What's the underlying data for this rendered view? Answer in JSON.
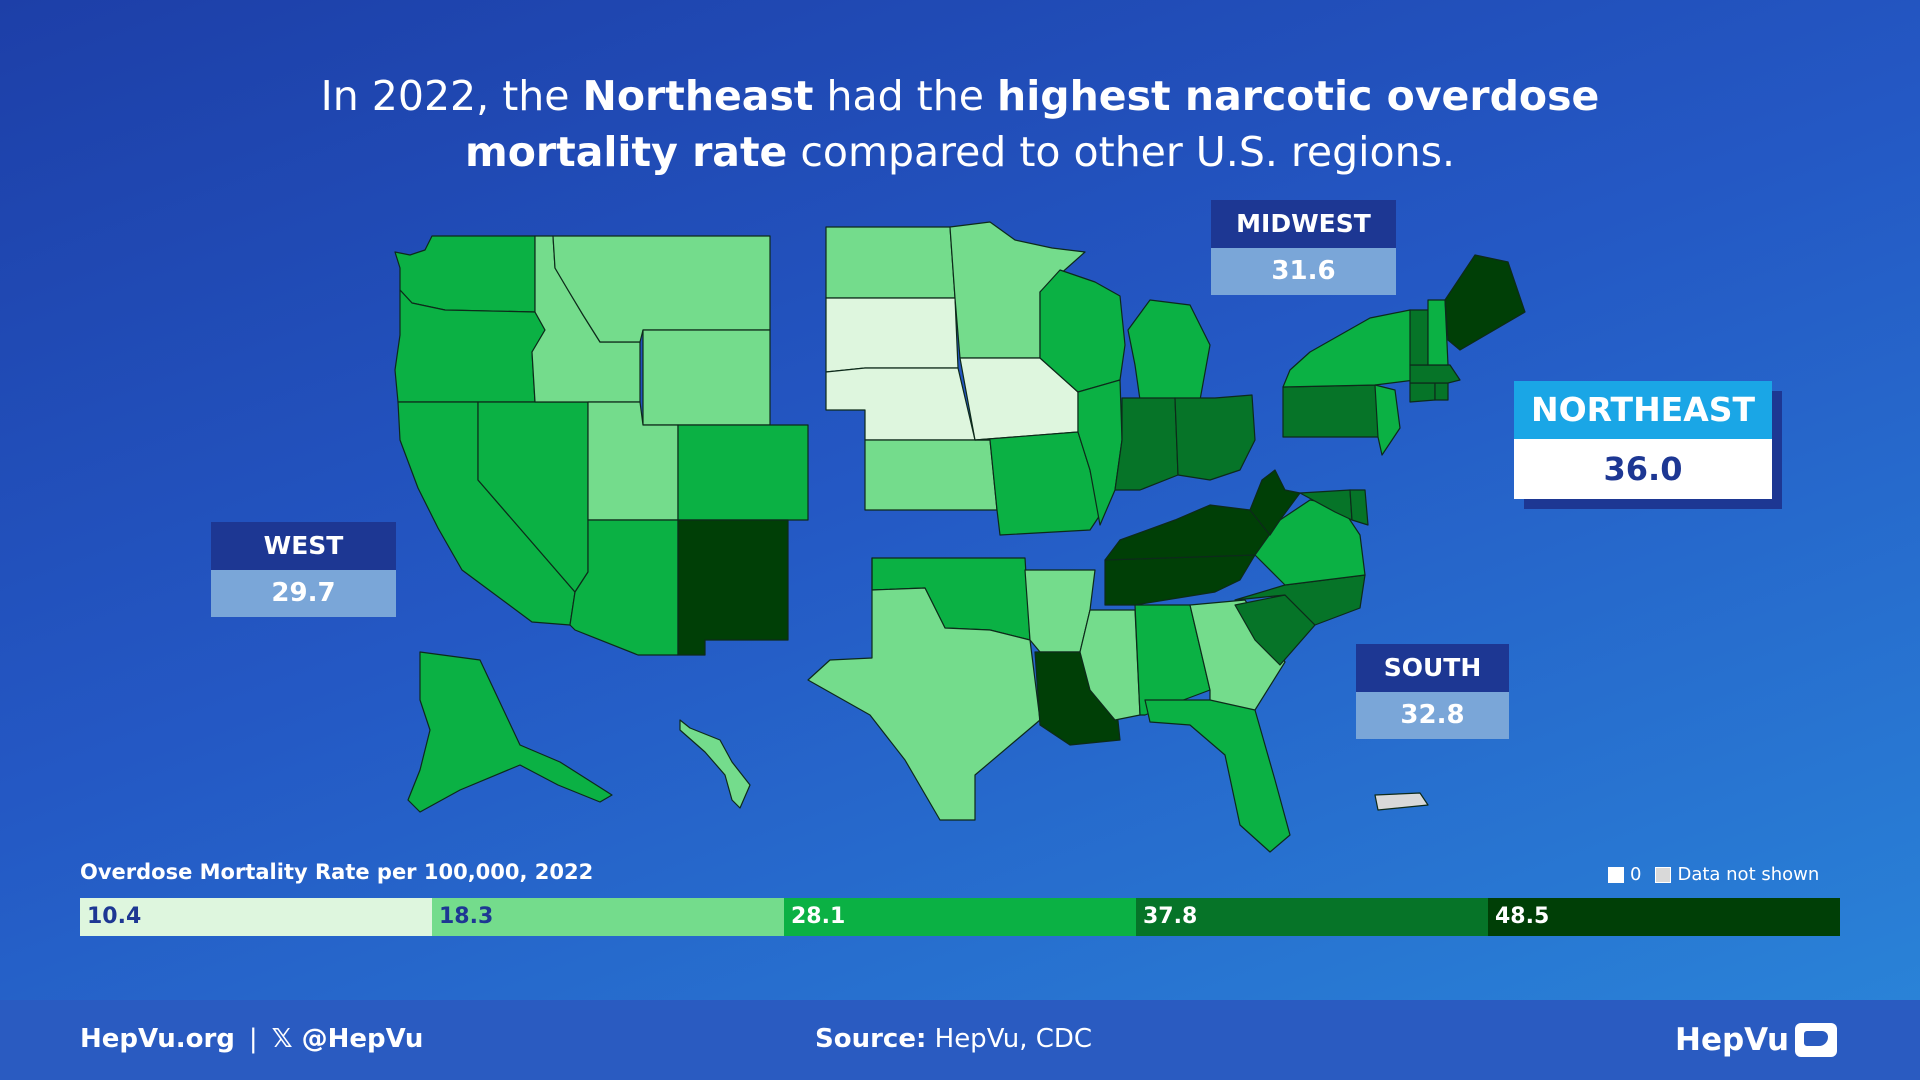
{
  "headline": {
    "p1": "In 2022, the ",
    "b1": "Northeast",
    "p2": " had the ",
    "b2": "highest narcotic overdose",
    "b3": "mortality rate",
    "p3": " compared to other U.S. regions."
  },
  "regions": {
    "west": {
      "name": "WEST",
      "value": "29.7"
    },
    "midwest": {
      "name": "MIDWEST",
      "value": "31.6"
    },
    "south": {
      "name": "SOUTH",
      "value": "32.8"
    },
    "northeast": {
      "name": "NORTHEAST",
      "value": "36.0"
    }
  },
  "legend": {
    "title": "Overdose Mortality Rate per 100,000, 2022",
    "zero_label": "0",
    "no_data_label": "Data not shown",
    "bins": [
      {
        "label": "10.4",
        "color": "#def6de",
        "text_color": "#1d3793"
      },
      {
        "label": "18.3",
        "color": "#74dc8c",
        "text_color": "#1d3793"
      },
      {
        "label": "28.1",
        "color": "#0bb144",
        "text_color": "#ffffff"
      },
      {
        "label": "37.8",
        "color": "#067428",
        "text_color": "#ffffff"
      },
      {
        "label": "48.5",
        "color": "#003f06",
        "text_color": "#ffffff"
      }
    ],
    "no_data_color": "#d9d9d9"
  },
  "map_states": [
    {
      "id": "WA",
      "bin": 2
    },
    {
      "id": "OR",
      "bin": 2
    },
    {
      "id": "CA",
      "bin": 2
    },
    {
      "id": "NV",
      "bin": 2
    },
    {
      "id": "ID",
      "bin": 1
    },
    {
      "id": "MT",
      "bin": 1
    },
    {
      "id": "WY",
      "bin": 1
    },
    {
      "id": "UT",
      "bin": 1
    },
    {
      "id": "CO",
      "bin": 2
    },
    {
      "id": "AZ",
      "bin": 2
    },
    {
      "id": "NM",
      "bin": 4
    },
    {
      "id": "AK",
      "bin": 2
    },
    {
      "id": "HI",
      "bin": 1
    },
    {
      "id": "ND",
      "bin": 1
    },
    {
      "id": "SD",
      "bin": 0
    },
    {
      "id": "NE",
      "bin": 0
    },
    {
      "id": "KS",
      "bin": 1
    },
    {
      "id": "MN",
      "bin": 1
    },
    {
      "id": "IA",
      "bin": 0
    },
    {
      "id": "MO",
      "bin": 2
    },
    {
      "id": "WI",
      "bin": 2
    },
    {
      "id": "IL",
      "bin": 2
    },
    {
      "id": "MI",
      "bin": 2
    },
    {
      "id": "IN",
      "bin": 3
    },
    {
      "id": "OH",
      "bin": 3
    },
    {
      "id": "OK",
      "bin": 2
    },
    {
      "id": "TX",
      "bin": 1
    },
    {
      "id": "AR",
      "bin": 1
    },
    {
      "id": "LA",
      "bin": 4
    },
    {
      "id": "MS",
      "bin": 1
    },
    {
      "id": "AL",
      "bin": 2
    },
    {
      "id": "TN",
      "bin": 4
    },
    {
      "id": "KY",
      "bin": 4
    },
    {
      "id": "GA",
      "bin": 1
    },
    {
      "id": "FL",
      "bin": 2
    },
    {
      "id": "SC",
      "bin": 3
    },
    {
      "id": "NC",
      "bin": 3
    },
    {
      "id": "VA",
      "bin": 2
    },
    {
      "id": "WV",
      "bin": 4
    },
    {
      "id": "MD",
      "bin": 3
    },
    {
      "id": "DE",
      "bin": 3
    },
    {
      "id": "PA",
      "bin": 3
    },
    {
      "id": "NY",
      "bin": 2
    },
    {
      "id": "NJ",
      "bin": 2
    },
    {
      "id": "CT",
      "bin": 3
    },
    {
      "id": "RI",
      "bin": 3
    },
    {
      "id": "MA",
      "bin": 3
    },
    {
      "id": "VT",
      "bin": 3
    },
    {
      "id": "NH",
      "bin": 2
    },
    {
      "id": "ME",
      "bin": 4
    },
    {
      "id": "PR",
      "bin": -1
    }
  ],
  "footer": {
    "site": "HepVu.org",
    "divider": "|",
    "social": "𝕏 @HepVu",
    "source_label": "Source:",
    "source_text": " HepVu, CDC",
    "logo": "HepVu"
  }
}
